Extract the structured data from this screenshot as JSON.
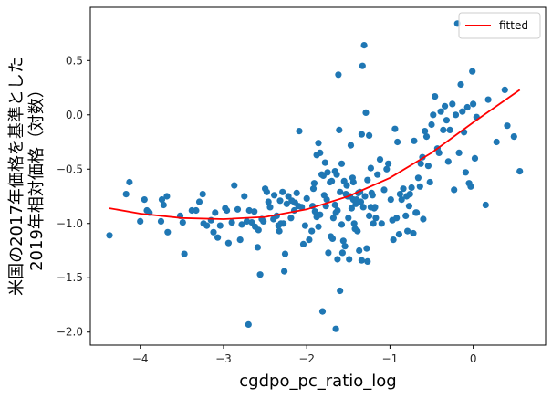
{
  "chart_data": {
    "type": "scatter",
    "xlabel": "cgdpo_pc_ratio_log",
    "ylabel_lines": [
      "米国の2017年価格を基準とした",
      "2019年相対価格（対数）"
    ],
    "xlim": [
      -4.6,
      0.87
    ],
    "ylim": [
      -2.12,
      0.99
    ],
    "x_ticks": [
      -4,
      -3,
      -2,
      -1,
      0
    ],
    "x_tick_labels": [
      "−4",
      "−3",
      "−2",
      "−1",
      "0"
    ],
    "y_ticks": [
      -2.0,
      -1.5,
      -1.0,
      -0.5,
      0.0,
      0.5
    ],
    "y_tick_labels": [
      "−2.0",
      "−1.5",
      "−1.0",
      "−0.5",
      "0.0",
      "0.5"
    ],
    "grid": false,
    "legend": {
      "placement": "top-right",
      "entries": [
        {
          "label": "fitted",
          "color": "#ff0000"
        }
      ]
    },
    "colors": {
      "points": "#1f77b4",
      "fitted": "#ff0000"
    },
    "fitted": {
      "x": [
        -4.37,
        -4.0,
        -3.5,
        -3.0,
        -2.5,
        -2.0,
        -1.5,
        -1.0,
        -0.5,
        0.0,
        0.56
      ],
      "y": [
        -0.86,
        -0.91,
        -0.95,
        -0.96,
        -0.94,
        -0.87,
        -0.75,
        -0.58,
        -0.35,
        -0.07,
        0.23
      ]
    },
    "points": [
      [
        -4.37,
        -1.11
      ],
      [
        -4.17,
        -0.73
      ],
      [
        -4.13,
        -0.62
      ],
      [
        -4.0,
        -0.98
      ],
      [
        -3.95,
        -0.78
      ],
      [
        -3.92,
        -0.88
      ],
      [
        -3.89,
        -0.9
      ],
      [
        -3.75,
        -0.98
      ],
      [
        -3.74,
        -0.78
      ],
      [
        -3.72,
        -0.83
      ],
      [
        -3.68,
        -0.75
      ],
      [
        -3.67,
        -1.08
      ],
      [
        -3.52,
        -0.93
      ],
      [
        -3.49,
        -0.99
      ],
      [
        -3.47,
        -1.28
      ],
      [
        -3.38,
        -0.88
      ],
      [
        -3.33,
        -0.88
      ],
      [
        -3.29,
        -0.8
      ],
      [
        -3.25,
        -0.73
      ],
      [
        -3.24,
        -1.0
      ],
      [
        -3.2,
        -1.02
      ],
      [
        -3.15,
        -0.97
      ],
      [
        -3.12,
        -1.08
      ],
      [
        -3.1,
        -0.9
      ],
      [
        -3.07,
        -1.13
      ],
      [
        -3.04,
        -1.02
      ],
      [
        -2.98,
        -0.86
      ],
      [
        -2.96,
        -0.88
      ],
      [
        -2.94,
        -1.18
      ],
      [
        -2.9,
        -0.99
      ],
      [
        -2.87,
        -0.65
      ],
      [
        -2.83,
        -0.87
      ],
      [
        -2.78,
        -1.01
      ],
      [
        -2.75,
        -0.75
      ],
      [
        -2.69,
        -0.88
      ],
      [
        -2.63,
        -0.89
      ],
      [
        -2.62,
        -1.03
      ],
      [
        -2.59,
        -1.22
      ],
      [
        -2.56,
        -1.47
      ],
      [
        -2.5,
        -0.68
      ],
      [
        -2.46,
        -0.8
      ],
      [
        -2.39,
        -0.74
      ],
      [
        -2.36,
        -0.93
      ],
      [
        -2.33,
        -1.07
      ],
      [
        -2.31,
        -1.0
      ],
      [
        -2.29,
        -0.71
      ],
      [
        -2.27,
        -1.44
      ],
      [
        -2.26,
        -1.28
      ],
      [
        -2.22,
        -0.75
      ],
      [
        -2.19,
        -0.95
      ],
      [
        -2.15,
        -0.88
      ],
      [
        -2.12,
        -0.72
      ],
      [
        -2.09,
        -0.15
      ],
      [
        -2.04,
        -1.19
      ],
      [
        -2.0,
        -0.77
      ],
      [
        -1.97,
        -1.15
      ],
      [
        -1.93,
        -0.84
      ],
      [
        -1.91,
        -0.63
      ],
      [
        -1.88,
        -0.94
      ],
      [
        -1.86,
        -1.03
      ],
      [
        -1.84,
        -0.92
      ],
      [
        -1.81,
        -1.81
      ],
      [
        -1.79,
        -0.74
      ],
      [
        -1.77,
        -0.84
      ],
      [
        -1.75,
        -0.53
      ],
      [
        -1.71,
        -1.12
      ],
      [
        -1.69,
        -1.14
      ],
      [
        -1.66,
        -0.83
      ],
      [
        -1.65,
        -0.9
      ],
      [
        -1.63,
        -0.88
      ],
      [
        -1.6,
        -0.71
      ],
      [
        -1.58,
        -1.01
      ],
      [
        -1.56,
        -1.16
      ],
      [
        -1.54,
        -1.21
      ],
      [
        -1.52,
        -0.65
      ],
      [
        -1.5,
        -0.95
      ],
      [
        -1.48,
        -0.75
      ],
      [
        -1.46,
        -0.86
      ],
      [
        -1.44,
        -0.78
      ],
      [
        -1.43,
        -1.0
      ],
      [
        -1.41,
        -0.82
      ],
      [
        -1.39,
        -1.07
      ],
      [
        -1.37,
        -1.25
      ],
      [
        -1.35,
        -0.8
      ],
      [
        -1.34,
        -1.34
      ],
      [
        -1.32,
        -0.85
      ],
      [
        -1.3,
        -0.75
      ],
      [
        -1.28,
        -1.23
      ],
      [
        -1.27,
        -0.6
      ],
      [
        -1.25,
        -0.93
      ],
      [
        -1.23,
        -0.49
      ],
      [
        -1.22,
        -0.72
      ],
      [
        -1.2,
        -1.0
      ],
      [
        -1.19,
        -0.86
      ],
      [
        -1.17,
        -0.95
      ],
      [
        -1.61,
        -0.14
      ],
      [
        -1.63,
        -1.33
      ],
      [
        -1.6,
        -1.62
      ],
      [
        -1.58,
        -0.45
      ],
      [
        -1.55,
        -0.61
      ],
      [
        -1.53,
        -0.73
      ],
      [
        -1.51,
        -0.75
      ],
      [
        -1.49,
        -1.33
      ],
      [
        -1.47,
        -0.28
      ],
      [
        -1.45,
        -0.58
      ],
      [
        -1.44,
        -0.62
      ],
      [
        -1.42,
        -1.05
      ],
      [
        -1.4,
        -0.78
      ],
      [
        -1.38,
        -0.72
      ],
      [
        -1.36,
        -0.71
      ],
      [
        -1.34,
        -0.18
      ],
      [
        -1.33,
        0.45
      ],
      [
        -1.31,
        0.64
      ],
      [
        -1.29,
        0.02
      ],
      [
        -1.27,
        -1.35
      ],
      [
        -1.25,
        -0.19
      ],
      [
        -1.23,
        -0.85
      ],
      [
        -1.21,
        -0.74
      ],
      [
        -1.18,
        -0.85
      ],
      [
        -1.15,
        -0.55
      ],
      [
        -1.12,
        -0.41
      ],
      [
        -1.1,
        -1.0
      ],
      [
        -1.07,
        -0.69
      ],
      [
        -1.04,
        -0.5
      ],
      [
        -1.02,
        -0.45
      ],
      [
        -0.99,
        -0.78
      ],
      [
        -0.96,
        -1.15
      ],
      [
        -0.94,
        -0.13
      ],
      [
        -0.91,
        -0.25
      ],
      [
        -0.89,
        -1.1
      ],
      [
        -0.86,
        -0.78
      ],
      [
        -0.84,
        -0.68
      ],
      [
        -0.81,
        -0.93
      ],
      [
        -0.79,
        -1.07
      ],
      [
        -0.76,
        -0.73
      ],
      [
        -0.74,
        -0.67
      ],
      [
        -0.71,
        -0.24
      ],
      [
        -0.69,
        -0.9
      ],
      [
        -0.66,
        -0.58
      ],
      [
        -0.63,
        -0.45
      ],
      [
        -0.61,
        -0.39
      ],
      [
        -0.58,
        -0.15
      ],
      [
        -0.56,
        -0.2
      ],
      [
        -0.54,
        -0.47
      ],
      [
        -0.52,
        -0.62
      ],
      [
        -0.5,
        -0.09
      ],
      [
        -0.48,
        0.0
      ],
      [
        -0.46,
        0.17
      ],
      [
        -0.43,
        -0.31
      ],
      [
        -0.41,
        -0.35
      ],
      [
        -0.39,
        0.03
      ],
      [
        -0.36,
        -0.14
      ],
      [
        -0.34,
        0.08
      ],
      [
        -0.32,
        -0.05
      ],
      [
        -0.3,
        -0.43
      ],
      [
        -0.28,
        -0.14
      ],
      [
        -0.25,
        0.1
      ],
      [
        -0.23,
        -0.69
      ],
      [
        -0.21,
        0.0
      ],
      [
        -0.19,
        0.84
      ],
      [
        -0.17,
        -0.35
      ],
      [
        -0.15,
        0.28
      ],
      [
        -0.13,
        0.03
      ],
      [
        -0.11,
        -0.16
      ],
      [
        -0.09,
        -0.53
      ],
      [
        -0.07,
        0.07
      ],
      [
        -0.05,
        -0.63
      ],
      [
        -0.03,
        -0.66
      ],
      [
        -0.01,
        0.4
      ],
      [
        0.0,
        0.1
      ],
      [
        0.02,
        -0.4
      ],
      [
        0.04,
        -0.02
      ],
      [
        0.15,
        -0.83
      ],
      [
        0.18,
        0.14
      ],
      [
        0.28,
        -0.25
      ],
      [
        0.38,
        0.23
      ],
      [
        0.41,
        -0.1
      ],
      [
        0.49,
        -0.2
      ],
      [
        0.56,
        -0.52
      ],
      [
        -1.62,
        0.37
      ],
      [
        -1.64,
        -0.55
      ],
      [
        -1.66,
        -0.52
      ],
      [
        -1.68,
        -0.95
      ],
      [
        -1.7,
        -0.61
      ],
      [
        -1.72,
        -0.62
      ],
      [
        -1.74,
        -1.27
      ],
      [
        -1.76,
        -0.78
      ],
      [
        -1.78,
        -0.44
      ],
      [
        -1.8,
        -0.56
      ],
      [
        -1.82,
        -0.55
      ],
      [
        -1.84,
        -0.35
      ],
      [
        -1.86,
        -0.26
      ],
      [
        -1.88,
        -0.37
      ],
      [
        -1.9,
        -0.89
      ],
      [
        -1.92,
        -0.68
      ],
      [
        -1.94,
        -1.07
      ],
      [
        -2.02,
        -1.02
      ],
      [
        -2.06,
        -0.85
      ],
      [
        -2.1,
        -0.84
      ],
      [
        -2.14,
        -0.81
      ],
      [
        -2.18,
        -0.79
      ],
      [
        -2.24,
        -0.82
      ],
      [
        -2.28,
        -1.0
      ],
      [
        -2.32,
        -0.79
      ],
      [
        -2.34,
        -1.02
      ],
      [
        -2.4,
        -0.96
      ],
      [
        -2.44,
        -0.85
      ],
      [
        -2.48,
        -0.71
      ],
      [
        -2.52,
        -0.98
      ],
      [
        -2.54,
        -0.96
      ],
      [
        -2.58,
        -1.06
      ],
      [
        -2.66,
        -0.99
      ],
      [
        -2.7,
        -1.93
      ],
      [
        -2.72,
        -0.98
      ],
      [
        -2.8,
        -1.15
      ],
      [
        -1.65,
        -1.97
      ],
      [
        -1.57,
        -1.27
      ],
      [
        -0.97,
        -0.97
      ],
      [
        -0.92,
        -0.95
      ],
      [
        -0.88,
        -0.73
      ],
      [
        -0.8,
        -0.75
      ],
      [
        -0.77,
        -0.84
      ],
      [
        -0.72,
        -1.09
      ],
      [
        -0.68,
        -0.9
      ],
      [
        -0.64,
        -0.66
      ],
      [
        -0.6,
        -0.96
      ]
    ]
  }
}
